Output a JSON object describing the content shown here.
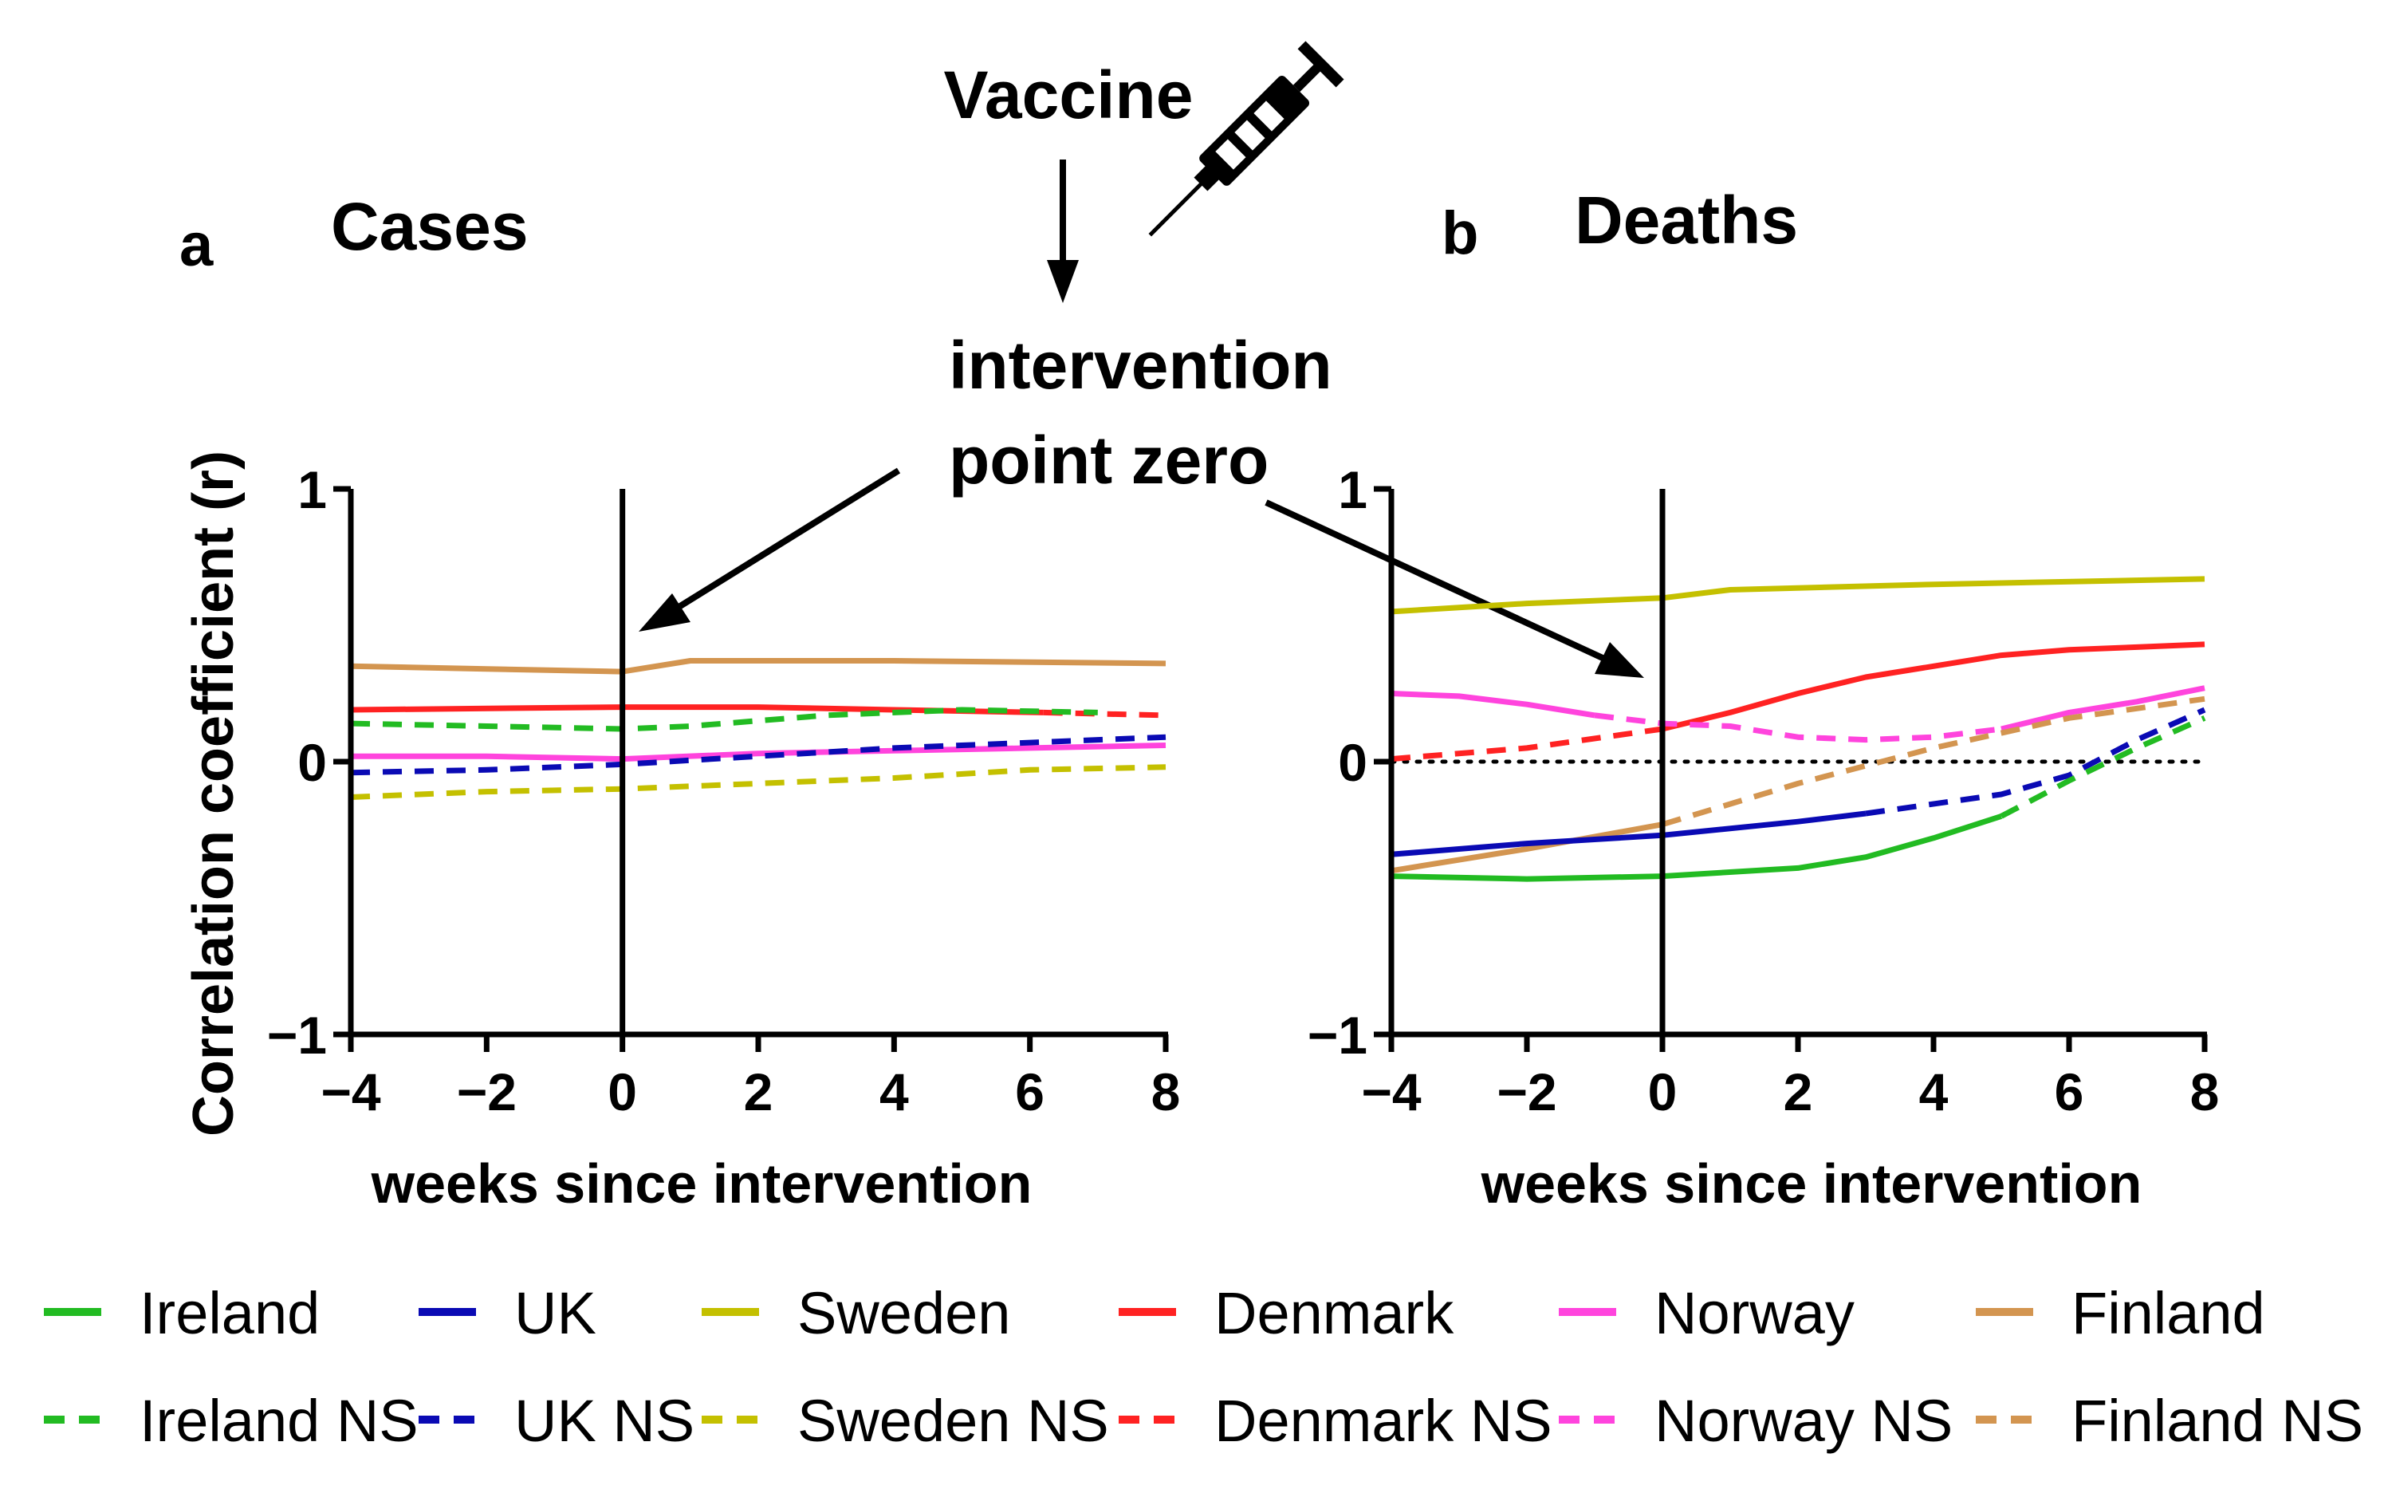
{
  "annotations": {
    "vaccine": "Vaccine",
    "intervention_line1": "intervention",
    "intervention_line2": "point zero"
  },
  "ylabel": "Correlation coefficient (r)",
  "legend": [
    {
      "label": "Ireland",
      "color": "#22bb22",
      "dashed": false
    },
    {
      "label": "UK",
      "color": "#0a0ab4",
      "dashed": false
    },
    {
      "label": "Sweden",
      "color": "#c4c000",
      "dashed": false
    },
    {
      "label": "Denmark",
      "color": "#ff2222",
      "dashed": false
    },
    {
      "label": "Norway",
      "color": "#ff44dd",
      "dashed": false
    },
    {
      "label": "Finland",
      "color": "#d39550",
      "dashed": false
    },
    {
      "label": "Ireland NS",
      "color": "#22bb22",
      "dashed": true
    },
    {
      "label": "UK NS",
      "color": "#0a0ab4",
      "dashed": true
    },
    {
      "label": "Sweden NS",
      "color": "#c4c000",
      "dashed": true
    },
    {
      "label": "Denmark NS",
      "color": "#ff2222",
      "dashed": true
    },
    {
      "label": "Norway NS",
      "color": "#ff44dd",
      "dashed": true
    },
    {
      "label": "Finland NS",
      "color": "#d39550",
      "dashed": true
    }
  ],
  "chart_data": [
    {
      "type": "line",
      "panel": "a",
      "title": "Cases",
      "xlabel": "weeks since intervention",
      "ylabel": "Correlation coefficient (r)",
      "xlim": [
        -4,
        8
      ],
      "ylim": [
        -1,
        1
      ],
      "xticks": [
        "−4",
        "−2",
        "0",
        "2",
        "4",
        "6",
        "8"
      ],
      "yticks": [
        "−1",
        "0",
        "1"
      ],
      "zero_line": false,
      "series": [
        {
          "name": "Finland",
          "color": "#d39550",
          "segments": [
            {
              "dashed": false,
              "points": [
                [
                  -4,
                  0.35
                ],
                [
                  -2,
                  0.34
                ],
                [
                  0,
                  0.33
                ],
                [
                  1,
                  0.37
                ],
                [
                  4,
                  0.37
                ],
                [
                  8,
                  0.36
                ]
              ]
            }
          ]
        },
        {
          "name": "Denmark",
          "color": "#ff2222",
          "segments": [
            {
              "dashed": false,
              "points": [
                [
                  -4,
                  0.19
                ],
                [
                  0,
                  0.2
                ],
                [
                  2,
                  0.2
                ],
                [
                  4,
                  0.19
                ],
                [
                  6.2,
                  0.18
                ]
              ]
            },
            {
              "dashed": true,
              "points": [
                [
                  6.2,
                  0.18
                ],
                [
                  8,
                  0.17
                ]
              ]
            }
          ]
        },
        {
          "name": "Ireland",
          "color": "#22bb22",
          "segments": [
            {
              "dashed": true,
              "points": [
                [
                  -4,
                  0.14
                ],
                [
                  -2,
                  0.13
                ],
                [
                  0,
                  0.12
                ],
                [
                  1,
                  0.13
                ],
                [
                  3,
                  0.17
                ],
                [
                  5,
                  0.19
                ],
                [
                  7,
                  0.18
                ]
              ]
            }
          ]
        },
        {
          "name": "Norway",
          "color": "#ff44dd",
          "segments": [
            {
              "dashed": false,
              "points": [
                [
                  -4,
                  0.02
                ],
                [
                  -2,
                  0.02
                ],
                [
                  0,
                  0.01
                ],
                [
                  2,
                  0.03
                ],
                [
                  4,
                  0.04
                ],
                [
                  6,
                  0.05
                ],
                [
                  8,
                  0.06
                ]
              ]
            }
          ]
        },
        {
          "name": "UK",
          "color": "#0a0ab4",
          "segments": [
            {
              "dashed": true,
              "points": [
                [
                  -4,
                  -0.04
                ],
                [
                  -2,
                  -0.03
                ],
                [
                  0,
                  -0.01
                ],
                [
                  2,
                  0.02
                ],
                [
                  4,
                  0.05
                ],
                [
                  6,
                  0.07
                ],
                [
                  8,
                  0.09
                ]
              ]
            }
          ]
        },
        {
          "name": "Sweden",
          "color": "#c4c000",
          "segments": [
            {
              "dashed": true,
              "points": [
                [
                  -4,
                  -0.13
                ],
                [
                  -2,
                  -0.11
                ],
                [
                  0,
                  -0.1
                ],
                [
                  2,
                  -0.08
                ],
                [
                  4,
                  -0.06
                ],
                [
                  6,
                  -0.03
                ],
                [
                  8,
                  -0.02
                ]
              ]
            }
          ]
        }
      ]
    },
    {
      "type": "line",
      "panel": "b",
      "title": "Deaths",
      "xlabel": "weeks since intervention",
      "ylabel": "",
      "xlim": [
        -4,
        8
      ],
      "ylim": [
        -1,
        1
      ],
      "xticks": [
        "−4",
        "−2",
        "0",
        "2",
        "4",
        "6",
        "8"
      ],
      "yticks": [
        "−1",
        "0",
        "1"
      ],
      "zero_line": true,
      "series": [
        {
          "name": "Sweden",
          "color": "#c4c000",
          "segments": [
            {
              "dashed": false,
              "points": [
                [
                  -4,
                  0.55
                ],
                [
                  -2,
                  0.58
                ],
                [
                  0,
                  0.6
                ],
                [
                  1,
                  0.63
                ],
                [
                  4,
                  0.65
                ],
                [
                  8,
                  0.67
                ]
              ]
            }
          ]
        },
        {
          "name": "Denmark",
          "color": "#ff2222",
          "segments": [
            {
              "dashed": true,
              "points": [
                [
                  -4,
                  0.01
                ],
                [
                  -2,
                  0.05
                ],
                [
                  0,
                  0.12
                ]
              ]
            },
            {
              "dashed": false,
              "points": [
                [
                  0,
                  0.12
                ],
                [
                  1,
                  0.18
                ],
                [
                  2,
                  0.25
                ],
                [
                  3,
                  0.31
                ],
                [
                  4,
                  0.35
                ],
                [
                  5,
                  0.39
                ],
                [
                  6,
                  0.41
                ],
                [
                  7,
                  0.42
                ],
                [
                  8,
                  0.43
                ]
              ]
            }
          ]
        },
        {
          "name": "Norway",
          "color": "#ff44dd",
          "segments": [
            {
              "dashed": false,
              "points": [
                [
                  -4,
                  0.25
                ],
                [
                  -3,
                  0.24
                ],
                [
                  -2,
                  0.21
                ],
                [
                  -1,
                  0.17
                ]
              ]
            },
            {
              "dashed": true,
              "points": [
                [
                  -1,
                  0.17
                ],
                [
                  0,
                  0.14
                ],
                [
                  1,
                  0.13
                ],
                [
                  2,
                  0.09
                ],
                [
                  3,
                  0.08
                ],
                [
                  4,
                  0.09
                ],
                [
                  5,
                  0.12
                ]
              ]
            },
            {
              "dashed": false,
              "points": [
                [
                  5,
                  0.12
                ],
                [
                  6,
                  0.18
                ],
                [
                  7,
                  0.22
                ],
                [
                  8,
                  0.27
                ]
              ]
            }
          ]
        },
        {
          "name": "Finland",
          "color": "#d39550",
          "segments": [
            {
              "dashed": false,
              "points": [
                [
                  -4,
                  -0.4
                ],
                [
                  -2,
                  -0.32
                ],
                [
                  0,
                  -0.23
                ]
              ]
            },
            {
              "dashed": true,
              "points": [
                [
                  0,
                  -0.23
                ],
                [
                  2,
                  -0.08
                ],
                [
                  4,
                  0.05
                ],
                [
                  6,
                  0.16
                ],
                [
                  8,
                  0.23
                ]
              ]
            }
          ]
        },
        {
          "name": "UK",
          "color": "#0a0ab4",
          "segments": [
            {
              "dashed": false,
              "points": [
                [
                  -4,
                  -0.34
                ],
                [
                  -2,
                  -0.3
                ],
                [
                  0,
                  -0.27
                ],
                [
                  2,
                  -0.22
                ],
                [
                  3,
                  -0.19
                ]
              ]
            },
            {
              "dashed": true,
              "points": [
                [
                  3,
                  -0.19
                ],
                [
                  5,
                  -0.12
                ],
                [
                  6,
                  -0.05
                ],
                [
                  7,
                  0.08
                ],
                [
                  8,
                  0.19
                ]
              ]
            }
          ]
        },
        {
          "name": "Ireland",
          "color": "#22bb22",
          "segments": [
            {
              "dashed": false,
              "points": [
                [
                  -4,
                  -0.42
                ],
                [
                  -2,
                  -0.43
                ],
                [
                  0,
                  -0.42
                ],
                [
                  2,
                  -0.39
                ],
                [
                  3,
                  -0.35
                ],
                [
                  4,
                  -0.28
                ],
                [
                  5,
                  -0.2
                ]
              ]
            },
            {
              "dashed": true,
              "points": [
                [
                  5,
                  -0.2
                ],
                [
                  6,
                  -0.07
                ],
                [
                  7,
                  0.05
                ],
                [
                  8,
                  0.16
                ]
              ]
            }
          ]
        }
      ]
    }
  ]
}
